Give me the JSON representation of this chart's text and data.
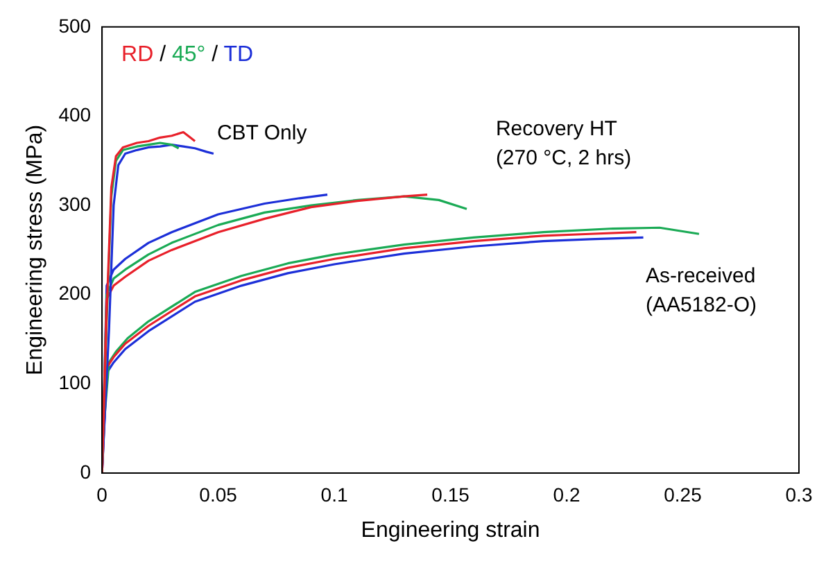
{
  "chart_data": {
    "type": "line",
    "xlabel": "Engineering strain",
    "ylabel": "Engineering stress (MPa)",
    "xlim": [
      0,
      0.3
    ],
    "xticks": [
      0,
      0.05,
      0.1,
      0.15,
      0.2,
      0.25,
      0.3
    ],
    "ylim": [
      0,
      500
    ],
    "yticks": [
      0,
      100,
      200,
      300,
      400,
      500
    ],
    "grid": false,
    "marker": "none",
    "line_style": "solid",
    "legend_title": "RD / 45° / TD",
    "series": [
      {
        "color": "#e8202a",
        "x": [
          0,
          0.002,
          0.004,
          0.006,
          0.009,
          0.015,
          0.02,
          0.025,
          0.03,
          0.035,
          0.038,
          0.04
        ],
        "values": [
          0,
          180,
          320,
          355,
          365,
          370,
          372,
          376,
          378,
          382,
          376,
          372
        ]
      },
      {
        "color": "#1aaa55",
        "x": [
          0,
          0.002,
          0.004,
          0.006,
          0.009,
          0.015,
          0.02,
          0.025,
          0.03,
          0.033
        ],
        "values": [
          0,
          170,
          310,
          350,
          362,
          366,
          368,
          370,
          368,
          364
        ]
      },
      {
        "color": "#1c2fd8",
        "x": [
          0,
          0.003,
          0.005,
          0.007,
          0.01,
          0.015,
          0.02,
          0.025,
          0.03,
          0.035,
          0.04,
          0.045,
          0.048
        ],
        "values": [
          0,
          160,
          300,
          345,
          358,
          362,
          365,
          366,
          368,
          366,
          364,
          360,
          358
        ]
      },
      {
        "color": "#e8202a",
        "x": [
          0,
          0.002,
          0.005,
          0.01,
          0.02,
          0.03,
          0.05,
          0.07,
          0.09,
          0.11,
          0.13,
          0.14
        ],
        "values": [
          0,
          195,
          210,
          220,
          238,
          250,
          270,
          285,
          298,
          305,
          310,
          312
        ]
      },
      {
        "color": "#1aaa55",
        "x": [
          0,
          0.002,
          0.005,
          0.01,
          0.02,
          0.03,
          0.05,
          0.07,
          0.09,
          0.11,
          0.13,
          0.145,
          0.157
        ],
        "values": [
          0,
          200,
          218,
          228,
          245,
          258,
          278,
          292,
          300,
          306,
          310,
          306,
          296
        ]
      },
      {
        "color": "#1c2fd8",
        "x": [
          0,
          0.002,
          0.005,
          0.01,
          0.02,
          0.03,
          0.05,
          0.07,
          0.085,
          0.097
        ],
        "values": [
          0,
          210,
          228,
          240,
          258,
          270,
          290,
          302,
          308,
          312
        ]
      },
      {
        "color": "#e8202a",
        "x": [
          0,
          0.002,
          0.005,
          0.01,
          0.02,
          0.04,
          0.06,
          0.08,
          0.1,
          0.13,
          0.16,
          0.19,
          0.21,
          0.23
        ],
        "values": [
          0,
          118,
          130,
          145,
          165,
          198,
          216,
          230,
          240,
          252,
          260,
          266,
          268,
          270
        ]
      },
      {
        "color": "#1aaa55",
        "x": [
          0.001,
          0.003,
          0.006,
          0.011,
          0.02,
          0.04,
          0.06,
          0.08,
          0.1,
          0.13,
          0.16,
          0.19,
          0.22,
          0.24,
          0.257
        ],
        "values": [
          60,
          124,
          136,
          151,
          170,
          203,
          221,
          235,
          245,
          256,
          264,
          270,
          274,
          275,
          268
        ]
      },
      {
        "color": "#1c2fd8",
        "x": [
          0,
          0.002,
          0.005,
          0.01,
          0.02,
          0.04,
          0.06,
          0.08,
          0.1,
          0.13,
          0.16,
          0.19,
          0.21,
          0.233
        ],
        "values": [
          0,
          112,
          124,
          139,
          159,
          192,
          210,
          224,
          234,
          246,
          254,
          260,
          262,
          264
        ]
      }
    ],
    "annotations": [
      "CBT Only",
      "Recovery HT\n(270 °C, 2 hrs)",
      "As-received\n(AA5182-O)"
    ]
  }
}
